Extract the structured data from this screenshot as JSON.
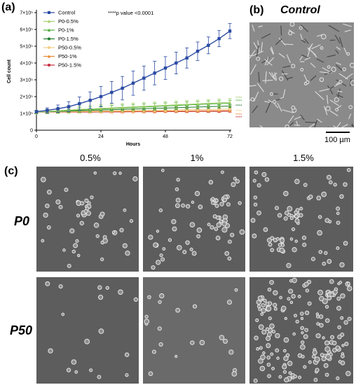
{
  "panels": {
    "a_label": "(a)",
    "b_label": "(b)",
    "c_label": "(c)"
  },
  "chart_data": {
    "type": "line",
    "title": "",
    "annotation": "****p value <0.0001",
    "xlabel": "Hours",
    "ylabel": "Cell count",
    "xlim": [
      0,
      72
    ],
    "ylim": [
      0,
      700000
    ],
    "x_ticks": [
      0,
      24,
      48,
      72
    ],
    "y_ticks": [
      {
        "value": 0,
        "label": "0"
      },
      {
        "value": 100000,
        "label": "1×10⁵"
      },
      {
        "value": 200000,
        "label": "2×10⁵"
      },
      {
        "value": 300000,
        "label": "3×10⁵"
      },
      {
        "value": 400000,
        "label": "4×10⁵"
      },
      {
        "value": 500000,
        "label": "5×10⁵"
      },
      {
        "value": 600000,
        "label": "6×10⁵"
      },
      {
        "value": 700000,
        "label": "7×10⁵"
      }
    ],
    "legend_position": "top-left",
    "x": [
      0,
      4,
      8,
      12,
      16,
      20,
      24,
      28,
      32,
      36,
      40,
      44,
      48,
      52,
      56,
      60,
      64,
      68,
      72
    ],
    "series": [
      {
        "name": "Control",
        "color": "#2a4aa3",
        "marker": "square",
        "values": [
          110000,
          118000,
          128000,
          140000,
          158000,
          178000,
          200000,
          225000,
          250000,
          280000,
          310000,
          340000,
          370000,
          400000,
          430000,
          470000,
          505000,
          545000,
          590000
        ],
        "errors": [
          8000,
          15000,
          22000,
          30000,
          40000,
          50000,
          60000,
          65000,
          70000,
          72000,
          72000,
          70000,
          68000,
          65000,
          60000,
          55000,
          50000,
          48000,
          45000
        ]
      },
      {
        "name": "P0-0.5%",
        "color": "#a5cf6a",
        "marker": "triangle",
        "values": [
          108000,
          112000,
          116000,
          120000,
          124000,
          127000,
          130000,
          133000,
          136000,
          139000,
          142000,
          145000,
          148000,
          151000,
          154000,
          157000,
          160000,
          163000,
          166000
        ],
        "errors": [
          12000,
          14000,
          16000,
          18000,
          20000,
          21000,
          22000,
          22000,
          22000,
          22000,
          22000,
          22000,
          22000,
          22000,
          22000,
          22000,
          22000,
          22000,
          22000
        ]
      },
      {
        "name": "P0-1%",
        "color": "#4caf3a",
        "marker": "triangle",
        "values": [
          108000,
          111000,
          114000,
          117000,
          120000,
          123000,
          126000,
          129000,
          132000,
          135000,
          138000,
          141000,
          144000,
          147000,
          150000,
          153000,
          156000,
          158000,
          160000
        ],
        "errors": [
          10000,
          12000,
          14000,
          15000,
          16000,
          17000,
          18000,
          18000,
          18000,
          18000,
          18000,
          18000,
          18000,
          18000,
          18000,
          18000,
          18000,
          18000,
          18000
        ]
      },
      {
        "name": "P0-1.5%",
        "color": "#1f7a2e",
        "marker": "circle",
        "values": [
          108000,
          110000,
          112000,
          114000,
          116000,
          118000,
          120000,
          122000,
          124000,
          126000,
          128000,
          130000,
          132000,
          134000,
          136000,
          138000,
          140000,
          142000,
          144000
        ],
        "errors": [
          8000,
          9000,
          10000,
          10000,
          10000,
          10000,
          10000,
          10000,
          10000,
          10000,
          10000,
          10000,
          10000,
          10000,
          10000,
          10000,
          10000,
          10000,
          10000
        ]
      },
      {
        "name": "P50-0.5%",
        "color": "#f2cf86",
        "marker": "circle",
        "values": [
          108000,
          109000,
          110000,
          111000,
          112000,
          113000,
          114000,
          115000,
          116000,
          117000,
          118000,
          119000,
          120000,
          121000,
          122000,
          123000,
          124000,
          125000,
          126000
        ],
        "errors": [
          10000,
          10000,
          10000,
          10000,
          10000,
          10000,
          10000,
          10000,
          10000,
          10000,
          10000,
          10000,
          10000,
          10000,
          10000,
          10000,
          10000,
          10000,
          10000
        ]
      },
      {
        "name": "P50-1%",
        "color": "#e8872e",
        "marker": "triangle",
        "values": [
          108000,
          108500,
          109000,
          109500,
          110000,
          110500,
          111000,
          111500,
          112000,
          112500,
          113000,
          113500,
          114000,
          114500,
          115000,
          115500,
          116000,
          116500,
          117000
        ],
        "errors": [
          8000,
          8000,
          8000,
          8000,
          8000,
          8000,
          8000,
          8000,
          8000,
          8000,
          8000,
          8000,
          8000,
          8000,
          8000,
          8000,
          8000,
          8000,
          8000
        ]
      },
      {
        "name": "P50-1.5%",
        "color": "#c42a3c",
        "marker": "circle",
        "values": [
          108000,
          108000,
          108000,
          108000,
          108000,
          108000,
          109000,
          109000,
          109000,
          110000,
          110000,
          110000,
          111000,
          111000,
          111000,
          112000,
          112000,
          112000,
          113000
        ],
        "errors": [
          6000,
          6000,
          6000,
          6000,
          6000,
          6000,
          6000,
          6000,
          6000,
          6000,
          6000,
          6000,
          6000,
          6000,
          6000,
          6000,
          6000,
          6000,
          6000
        ]
      }
    ],
    "significance_marks": "****"
  },
  "control_image": {
    "title": "Control",
    "scale_label": "100 µm"
  },
  "grid": {
    "columns": [
      "0.5%",
      "1%",
      "1.5%"
    ],
    "rows": [
      "P0",
      "P50"
    ]
  }
}
